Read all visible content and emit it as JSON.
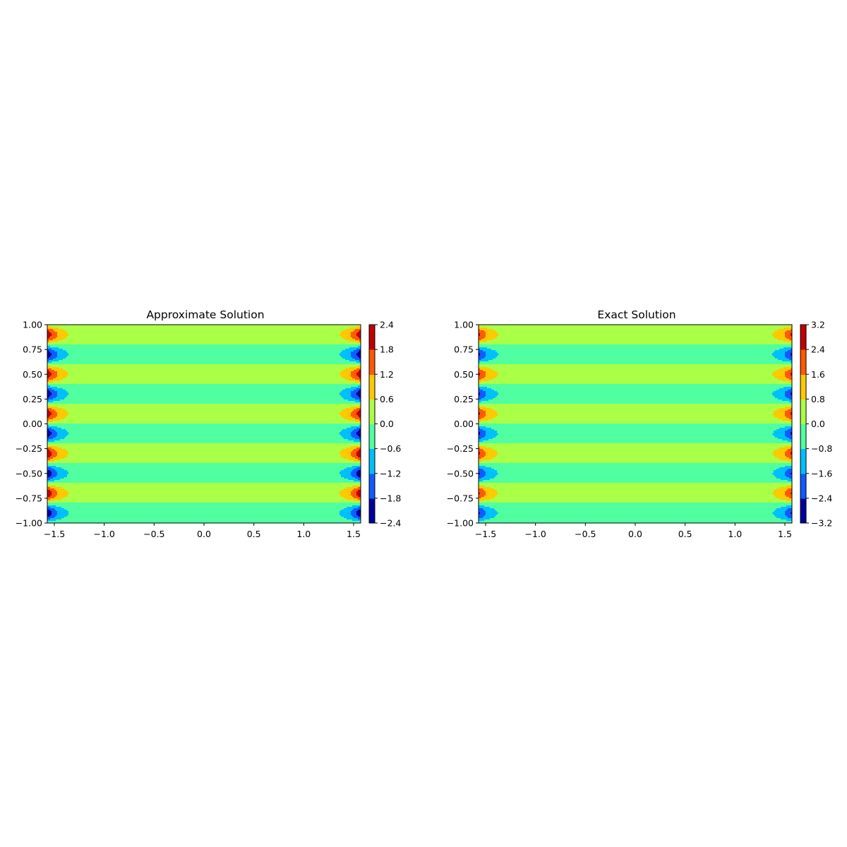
{
  "colors": {
    "levels_cmap": [
      "#00009f",
      "#0f5bff",
      "#00bfff",
      "#4fffa0",
      "#aaff47",
      "#ffc900",
      "#ff5a00",
      "#c00000"
    ]
  },
  "chart_data": [
    {
      "type": "heatmap",
      "subtype": "filled-contour",
      "title": "Approximate Solution",
      "xlabel": "",
      "ylabel": "",
      "xlim": [
        -1.5708,
        1.5708
      ],
      "ylim": [
        -1.0,
        1.0
      ],
      "x_ticks": [
        "−1.5",
        "−1.0",
        "−0.5",
        "0.0",
        "0.5",
        "1.0",
        "1.5"
      ],
      "x_tick_values": [
        -1.5,
        -1.0,
        -0.5,
        0.0,
        0.5,
        1.0,
        1.5
      ],
      "y_ticks": [
        "−1.00",
        "−0.75",
        "−0.50",
        "−0.25",
        "0.00",
        "0.25",
        "0.50",
        "0.75",
        "1.00"
      ],
      "y_tick_values": [
        -1.0,
        -0.75,
        -0.5,
        -0.25,
        0.0,
        0.25,
        0.5,
        0.75,
        1.0
      ],
      "colorbar": {
        "levels": [
          -2.4,
          -1.8,
          -1.2,
          -0.6,
          0.0,
          0.6,
          1.2,
          1.8,
          2.4
        ],
        "tick_labels": [
          "−2.4",
          "−1.8",
          "−1.2",
          "−0.6",
          "0.0",
          "0.6",
          "1.2",
          "1.8",
          "2.4"
        ]
      },
      "field": {
        "form": "amplitude * (sinh(k*|x|)/sinh(k*pi/2)) * sin(5*pi*y)",
        "amplitude": 2.35,
        "k": 6.5
      }
    },
    {
      "type": "heatmap",
      "subtype": "filled-contour",
      "title": "Exact Solution",
      "xlabel": "",
      "ylabel": "",
      "xlim": [
        -1.5708,
        1.5708
      ],
      "ylim": [
        -1.0,
        1.0
      ],
      "x_ticks": [
        "−1.5",
        "−1.0",
        "−0.5",
        "0.0",
        "0.5",
        "1.0",
        "1.5"
      ],
      "x_tick_values": [
        -1.5,
        -1.0,
        -0.5,
        0.0,
        0.5,
        1.0,
        1.5
      ],
      "y_ticks": [
        "−1.00",
        "−0.75",
        "−0.50",
        "−0.25",
        "0.00",
        "0.25",
        "0.50",
        "0.75",
        "1.00"
      ],
      "y_tick_values": [
        -1.0,
        -0.75,
        -0.5,
        -0.25,
        0.0,
        0.25,
        0.5,
        0.75,
        1.0
      ],
      "colorbar": {
        "levels": [
          -3.2,
          -2.4,
          -1.6,
          -0.8,
          0.0,
          0.8,
          1.6,
          2.4,
          3.2
        ],
        "tick_labels": [
          "−3.2",
          "−2.4",
          "−1.6",
          "−0.8",
          "0.0",
          "0.8",
          "1.6",
          "2.4",
          "3.2"
        ]
      },
      "field": {
        "form": "amplitude * (sinh(k*|x|)/sinh(k*pi/2)) * sin(5*pi*y)",
        "amplitude": 2.55,
        "k": 6.0
      }
    }
  ]
}
